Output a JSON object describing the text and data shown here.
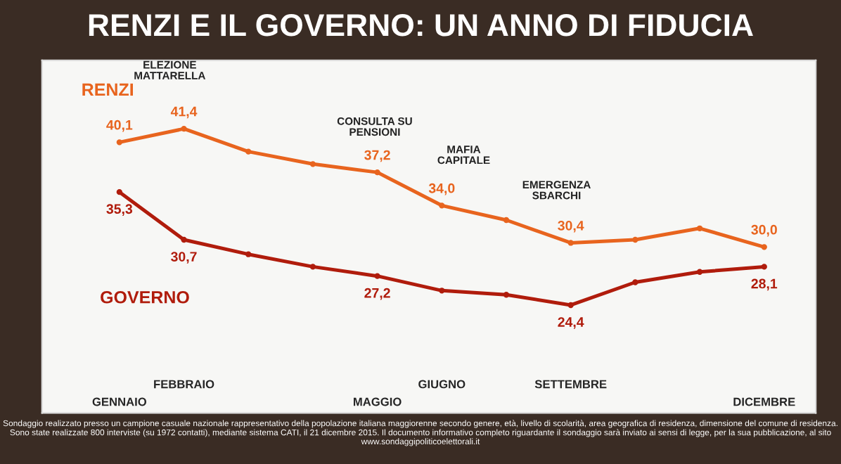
{
  "chart_data": {
    "type": "line",
    "title": "RENZI E IL GOVERNO: UN ANNO DI FIDUCIA",
    "categories": [
      "GENNAIO",
      "FEBBRAIO",
      null,
      null,
      "MAGGIO",
      "GIUGNO",
      null,
      "SETTEMBRE",
      null,
      null,
      "DICEMBRE"
    ],
    "series": [
      {
        "name": "RENZI",
        "color": "#e8641e",
        "values": [
          40.1,
          41.4,
          39.2,
          38.0,
          37.2,
          34.0,
          32.6,
          30.4,
          30.7,
          31.8,
          30.0
        ],
        "value_labels": [
          "40,1",
          "41,4",
          null,
          null,
          "37,2",
          "34,0",
          null,
          "30,4",
          null,
          null,
          "30,0"
        ]
      },
      {
        "name": "GOVERNO",
        "color": "#b01c0c",
        "values": [
          35.3,
          30.7,
          29.3,
          28.1,
          27.2,
          25.8,
          25.4,
          24.4,
          26.6,
          27.6,
          28.1
        ],
        "value_labels": [
          "35,3",
          "30,7",
          null,
          null,
          "27,2",
          null,
          null,
          "24,4",
          null,
          null,
          "28,1"
        ]
      }
    ],
    "ylim": [
      14,
      48
    ],
    "grid": false,
    "legend": false,
    "marker": "circle",
    "line_style": "solid",
    "annotations": [
      "ELEZIONE\nMATTARELLA",
      "CONSULTA SU\nPENSIONI",
      "MAFIA\nCAPITALE",
      "EMERGENZA\nSBARCHI",
      "Sondaggio realizzato presso un campione casuale nazionale rappresentativo della popolazione italiana maggiorenne secondo genere, età, livello di scolarità, area geografica di residenza, dimensione del comune di residenza. Sono state realizzate 800 interviste (su 1972 contatti), mediante sistema CATI, il 21 dicembre 2015. Il documento informativo completo riguardante il sondaggio sarà inviato ai sensi di legge, per la sua pubblicazione, al sito www.sondaggipoliticoelettorali.it"
    ]
  }
}
